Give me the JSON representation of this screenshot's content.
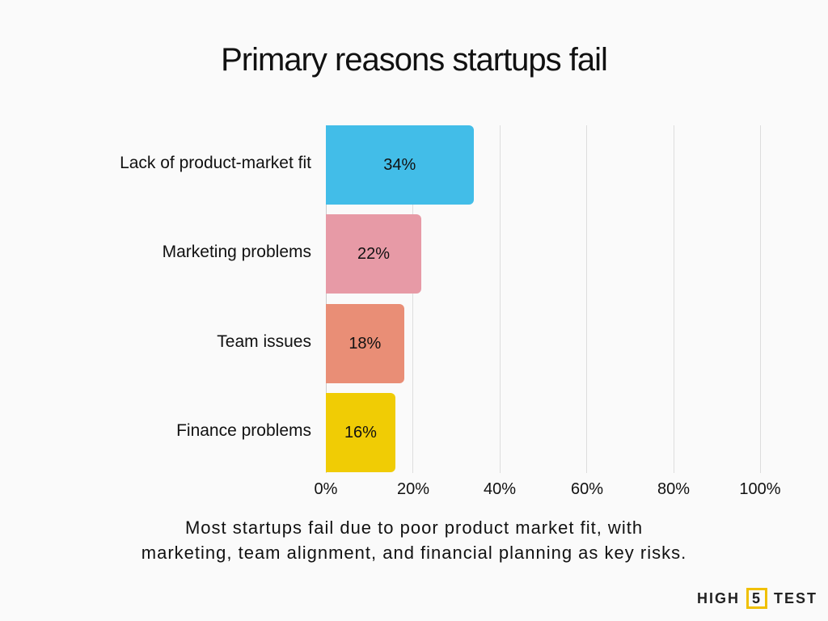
{
  "title": "Primary reasons startups fail",
  "caption_line1": "Most startups fail due to poor product market fit, with",
  "caption_line2": "marketing, team alignment, and financial planning as key risks.",
  "logo": {
    "left": "HIGH",
    "middle": "5",
    "right": "TEST"
  },
  "chart_data": {
    "type": "bar",
    "orientation": "horizontal",
    "title": "Primary reasons startups fail",
    "categories": [
      "Lack of product-market fit",
      "Marketing problems",
      "Team issues",
      "Finance problems"
    ],
    "values": [
      34,
      22,
      18,
      16
    ],
    "labels": [
      "34%",
      "22%",
      "18%",
      "16%"
    ],
    "colors": [
      "#42bde8",
      "#e79aa6",
      "#e98e76",
      "#f0cc05"
    ],
    "xlabel": "",
    "ylabel": "",
    "xlim": [
      0,
      100
    ],
    "xticks": [
      "0%",
      "20%",
      "40%",
      "60%",
      "80%",
      "100%"
    ],
    "grid": true,
    "legend": "none"
  }
}
